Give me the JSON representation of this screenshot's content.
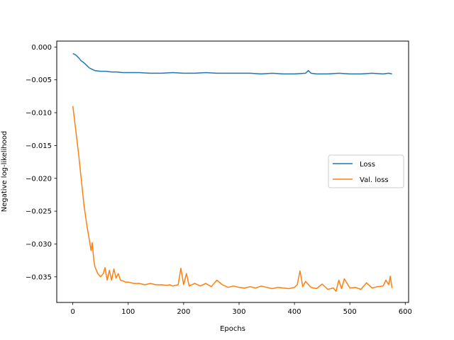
{
  "chart_data": {
    "type": "line",
    "title": "",
    "xlabel": "Epochs",
    "ylabel": "Negative log-likelihood",
    "xlim": [
      -29,
      606
    ],
    "ylim": [
      -0.0389,
      0.0009
    ],
    "xticks": [
      0,
      100,
      200,
      300,
      400,
      500,
      600
    ],
    "xtick_labels": [
      "0",
      "100",
      "200",
      "300",
      "400",
      "500",
      "600"
    ],
    "yticks": [
      0.0,
      -0.005,
      -0.01,
      -0.015,
      -0.02,
      -0.025,
      -0.03,
      -0.035
    ],
    "ytick_labels": [
      "0.000",
      "−0.005",
      "−0.010",
      "−0.015",
      "−0.020",
      "−0.025",
      "−0.030",
      "−0.035"
    ],
    "grid": false,
    "legend": {
      "position": "center-right"
    },
    "series": [
      {
        "name": "Loss",
        "color": "#1f77b4",
        "x": [
          0,
          5,
          10,
          15,
          20,
          25,
          30,
          35,
          40,
          50,
          60,
          70,
          80,
          90,
          100,
          120,
          140,
          160,
          180,
          200,
          220,
          240,
          260,
          280,
          300,
          320,
          340,
          360,
          380,
          400,
          420,
          425,
          430,
          440,
          460,
          480,
          500,
          520,
          540,
          560,
          570,
          576
        ],
        "y": [
          -0.001,
          -0.0012,
          -0.0016,
          -0.0021,
          -0.0024,
          -0.0028,
          -0.0032,
          -0.0034,
          -0.0036,
          -0.0037,
          -0.0037,
          -0.0038,
          -0.0038,
          -0.0039,
          -0.0039,
          -0.0039,
          -0.004,
          -0.004,
          -0.0039,
          -0.004,
          -0.004,
          -0.0039,
          -0.004,
          -0.004,
          -0.004,
          -0.004,
          -0.0041,
          -0.004,
          -0.0041,
          -0.0041,
          -0.004,
          -0.0036,
          -0.004,
          -0.0041,
          -0.0041,
          -0.004,
          -0.0041,
          -0.0041,
          -0.004,
          -0.0041,
          -0.004,
          -0.0041
        ]
      },
      {
        "name": "Val. loss",
        "color": "#ff7f0e",
        "x": [
          0,
          5,
          10,
          15,
          20,
          25,
          30,
          33,
          35,
          38,
          40,
          45,
          50,
          55,
          58,
          62,
          66,
          70,
          74,
          78,
          82,
          86,
          90,
          95,
          100,
          110,
          120,
          130,
          140,
          150,
          160,
          170,
          175,
          180,
          190,
          195,
          200,
          205,
          210,
          220,
          230,
          240,
          250,
          260,
          270,
          280,
          290,
          300,
          310,
          320,
          330,
          340,
          350,
          360,
          370,
          380,
          390,
          400,
          405,
          410,
          415,
          420,
          430,
          440,
          450,
          460,
          470,
          475,
          480,
          485,
          490,
          500,
          510,
          520,
          530,
          540,
          550,
          560,
          565,
          570,
          573,
          576
        ],
        "y": [
          -0.009,
          -0.0125,
          -0.016,
          -0.02,
          -0.024,
          -0.027,
          -0.0295,
          -0.031,
          -0.0298,
          -0.0325,
          -0.0335,
          -0.0345,
          -0.035,
          -0.0345,
          -0.0336,
          -0.0355,
          -0.034,
          -0.0355,
          -0.0338,
          -0.0352,
          -0.0345,
          -0.0355,
          -0.0356,
          -0.0358,
          -0.0358,
          -0.036,
          -0.036,
          -0.0362,
          -0.036,
          -0.0362,
          -0.0362,
          -0.0363,
          -0.0362,
          -0.0364,
          -0.0362,
          -0.0337,
          -0.0362,
          -0.0345,
          -0.0364,
          -0.036,
          -0.0364,
          -0.036,
          -0.0365,
          -0.0355,
          -0.0362,
          -0.0366,
          -0.0364,
          -0.0366,
          -0.0367,
          -0.0365,
          -0.0367,
          -0.0364,
          -0.0366,
          -0.0368,
          -0.0366,
          -0.0367,
          -0.0368,
          -0.0366,
          -0.0362,
          -0.0341,
          -0.0365,
          -0.0357,
          -0.0366,
          -0.0368,
          -0.0361,
          -0.0369,
          -0.0367,
          -0.0372,
          -0.0355,
          -0.0368,
          -0.0353,
          -0.0367,
          -0.0366,
          -0.0369,
          -0.0359,
          -0.0367,
          -0.0365,
          -0.0364,
          -0.0355,
          -0.0362,
          -0.0349,
          -0.0367
        ]
      }
    ]
  }
}
